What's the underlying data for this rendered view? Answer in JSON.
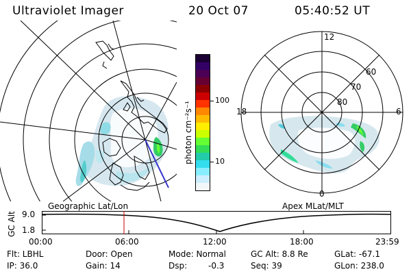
{
  "header": {
    "instrument": "Ultraviolet Imager",
    "date": "20 Oct 07",
    "time": "05:40:52 UT"
  },
  "colorbar": {
    "unit_label": "photon cm⁻²s⁻¹",
    "ticks": [
      "100",
      "10"
    ],
    "colors": [
      "#1a0033",
      "#330066",
      "#4b0055",
      "#660033",
      "#8b0000",
      "#cc0000",
      "#ff3300",
      "#ff8800",
      "#ffbb00",
      "#ffee00",
      "#ccff00",
      "#66ff33",
      "#33dd55",
      "#22ccaa",
      "#33ddee",
      "#88eeff",
      "#cceeff",
      "#f2f7fa"
    ]
  },
  "left_panel": {
    "caption": "Geographic Lat/Lon"
  },
  "right_panel": {
    "caption": "Apex MLat/MLT",
    "mlt_labels": {
      "top": "12",
      "left": "18",
      "right": "6",
      "bottom": "0"
    },
    "lat_labels": [
      "60",
      "70",
      "80"
    ]
  },
  "altitude_plot": {
    "ylabel": "GC Alt",
    "yticks": [
      "9.0",
      "1.8"
    ],
    "xticks": [
      "00:00",
      "06:00",
      "12:00",
      "18:00",
      "23:59"
    ]
  },
  "status": {
    "filter": "Flt: LBHL",
    "ip": "IP: 36.0",
    "door": "Door: Open",
    "gain": "Gain: 14",
    "mode": "Mode: Normal",
    "dsp": "Dsp:",
    "dsp_value": "-0.3",
    "gc_alt": "GC Alt: 8.8 Re",
    "seq": "Seq: 39",
    "glat": "GLat: -67.1",
    "glon": "GLon: 238.0"
  }
}
